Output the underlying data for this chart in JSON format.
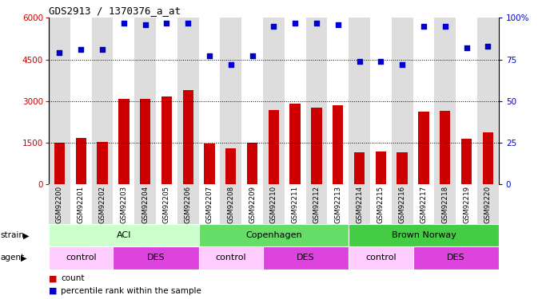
{
  "title": "GDS2913 / 1370376_a_at",
  "samples": [
    "GSM92200",
    "GSM92201",
    "GSM92202",
    "GSM92203",
    "GSM92204",
    "GSM92205",
    "GSM92206",
    "GSM92207",
    "GSM92208",
    "GSM92209",
    "GSM92210",
    "GSM92211",
    "GSM92212",
    "GSM92213",
    "GSM92214",
    "GSM92215",
    "GSM92216",
    "GSM92217",
    "GSM92218",
    "GSM92219",
    "GSM92220"
  ],
  "bar_values": [
    1480,
    1660,
    1530,
    3080,
    3080,
    3160,
    3380,
    1460,
    1280,
    1500,
    2680,
    2900,
    2750,
    2850,
    1130,
    1170,
    1130,
    2620,
    2640,
    1620,
    1870
  ],
  "dot_values": [
    79,
    81,
    81,
    97,
    96,
    97,
    97,
    77,
    72,
    77,
    95,
    97,
    97,
    96,
    74,
    74,
    72,
    95,
    95,
    82,
    83
  ],
  "bar_color": "#cc0000",
  "dot_color": "#0000cc",
  "ylim_left": [
    0,
    6000
  ],
  "ylim_right": [
    0,
    100
  ],
  "yticks_left": [
    0,
    1500,
    3000,
    4500,
    6000
  ],
  "yticks_right": [
    0,
    25,
    50,
    75,
    100
  ],
  "ytick_right_labels": [
    "0",
    "25",
    "50",
    "75",
    "100%"
  ],
  "grid_values": [
    1500,
    3000,
    4500
  ],
  "col_bg_even": "#dddddd",
  "col_bg_odd": "#ffffff",
  "strain_groups": [
    {
      "label": "ACI",
      "start": 0,
      "end": 6,
      "color": "#ccffcc"
    },
    {
      "label": "Copenhagen",
      "start": 7,
      "end": 13,
      "color": "#66dd66"
    },
    {
      "label": "Brown Norway",
      "start": 14,
      "end": 20,
      "color": "#44cc44"
    }
  ],
  "agent_groups": [
    {
      "label": "control",
      "start": 0,
      "end": 2,
      "color": "#ffccff"
    },
    {
      "label": "DES",
      "start": 3,
      "end": 6,
      "color": "#dd44dd"
    },
    {
      "label": "control",
      "start": 7,
      "end": 9,
      "color": "#ffccff"
    },
    {
      "label": "DES",
      "start": 10,
      "end": 13,
      "color": "#dd44dd"
    },
    {
      "label": "control",
      "start": 14,
      "end": 16,
      "color": "#ffccff"
    },
    {
      "label": "DES",
      "start": 17,
      "end": 20,
      "color": "#dd44dd"
    }
  ],
  "strain_label": "strain",
  "agent_label": "agent",
  "legend_count_color": "#cc0000",
  "legend_dot_color": "#0000cc",
  "bg_color": "#ffffff",
  "tick_label_color_left": "#cc0000",
  "tick_label_color_right": "#0000cc"
}
